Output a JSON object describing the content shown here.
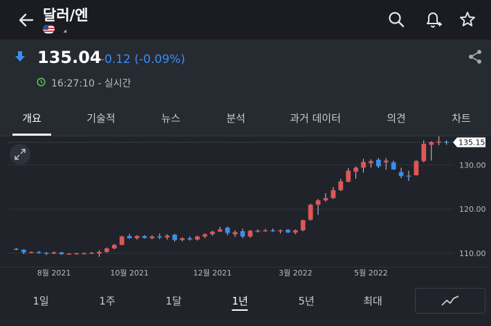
{
  "header": {
    "title": "달러/엔"
  },
  "quote": {
    "price": "135.04",
    "change": "-0.12 (-0.09%)",
    "time": "16:27:10 - 실시간"
  },
  "tabs": [
    "개요",
    "기술적",
    "뉴스",
    "분석",
    "과거 데이터",
    "의견",
    "차트"
  ],
  "ranges": [
    "1일",
    "1주",
    "1달",
    "1년",
    "5년",
    "최대"
  ],
  "colors": {
    "up": "#e05556",
    "down": "#3a8ef2",
    "accent": "#3a8ef2"
  },
  "icons": [
    "back-arrow-icon",
    "us-flag-icon",
    "search-icon",
    "bell-plus-icon",
    "star-icon",
    "down-arrow-icon",
    "share-icon",
    "clock-icon",
    "expand-icon",
    "line-chart-icon"
  ],
  "chart_data": {
    "type": "candlestick",
    "ylim": [
      107,
      136.5
    ],
    "yticks": [
      "110.00",
      "120.00",
      "130.00"
    ],
    "xticks": [
      "8월 2021",
      "10월 2021",
      "12월 2021",
      "3월 2022",
      "5월 2022"
    ],
    "last_price_label": "135.15",
    "candles": [
      [
        111.0,
        111.2,
        110.7,
        110.8
      ],
      [
        110.8,
        110.9,
        109.8,
        110.2
      ],
      [
        110.2,
        110.4,
        110.0,
        110.3
      ],
      [
        110.3,
        110.5,
        109.9,
        110.1
      ],
      [
        110.1,
        110.3,
        109.6,
        109.9
      ],
      [
        109.9,
        110.4,
        109.8,
        110.2
      ],
      [
        110.2,
        110.3,
        109.6,
        109.8
      ],
      [
        109.8,
        110.0,
        109.7,
        109.9
      ],
      [
        109.9,
        110.1,
        109.7,
        110.0
      ],
      [
        110.0,
        110.2,
        109.8,
        110.0
      ],
      [
        110.0,
        110.3,
        109.8,
        110.1
      ],
      [
        109.9,
        110.7,
        109.2,
        110.3
      ],
      [
        110.3,
        111.3,
        110.1,
        111.1
      ],
      [
        111.1,
        112.1,
        110.9,
        111.9
      ],
      [
        111.9,
        114.0,
        111.8,
        113.8
      ],
      [
        113.9,
        114.4,
        113.3,
        113.4
      ],
      [
        113.4,
        114.1,
        113.1,
        113.9
      ],
      [
        113.9,
        114.1,
        113.3,
        113.5
      ],
      [
        113.4,
        114.1,
        113.2,
        113.8
      ],
      [
        113.8,
        114.5,
        113.2,
        113.6
      ],
      [
        113.6,
        114.3,
        113.1,
        114.0
      ],
      [
        114.2,
        114.4,
        112.6,
        113.0
      ],
      [
        113.0,
        113.6,
        112.7,
        113.4
      ],
      [
        113.4,
        113.8,
        112.9,
        113.1
      ],
      [
        113.1,
        114.0,
        112.9,
        113.8
      ],
      [
        113.8,
        114.5,
        113.4,
        114.3
      ],
      [
        114.3,
        115.1,
        114.0,
        114.9
      ],
      [
        114.9,
        116.0,
        114.8,
        115.4
      ],
      [
        115.8,
        116.1,
        114.1,
        114.6
      ],
      [
        114.3,
        115.2,
        113.7,
        114.8
      ],
      [
        115.0,
        115.6,
        113.4,
        113.8
      ],
      [
        113.8,
        115.3,
        113.5,
        115.1
      ],
      [
        115.0,
        115.4,
        114.7,
        115.1
      ],
      [
        115.1,
        115.5,
        114.9,
        115.2
      ],
      [
        115.2,
        115.6,
        114.8,
        115.0
      ],
      [
        115.0,
        115.4,
        114.5,
        115.2
      ],
      [
        115.3,
        115.5,
        114.6,
        114.7
      ],
      [
        114.7,
        115.4,
        114.3,
        115.2
      ],
      [
        115.2,
        117.6,
        115.0,
        117.5
      ],
      [
        117.6,
        121.2,
        117.4,
        121.0
      ],
      [
        121.0,
        122.3,
        118.7,
        122.0
      ],
      [
        122.0,
        123.6,
        121.7,
        122.5
      ],
      [
        122.5,
        125.0,
        122.3,
        124.3
      ],
      [
        124.3,
        126.9,
        124.1,
        126.3
      ],
      [
        126.2,
        129.3,
        126.1,
        128.7
      ],
      [
        128.5,
        129.7,
        126.9,
        129.4
      ],
      [
        129.4,
        131.4,
        128.3,
        130.7
      ],
      [
        130.4,
        131.3,
        129.4,
        130.9
      ],
      [
        131.2,
        131.6,
        129.3,
        129.7
      ],
      [
        130.6,
        131.6,
        128.9,
        131.0
      ],
      [
        130.6,
        131.0,
        128.9,
        129.0
      ],
      [
        128.4,
        129.4,
        127.0,
        127.5
      ],
      [
        127.6,
        128.7,
        126.4,
        127.5
      ],
      [
        127.7,
        131.1,
        127.6,
        130.9
      ],
      [
        130.9,
        135.6,
        130.6,
        134.8
      ],
      [
        134.6,
        135.4,
        131.0,
        135.2
      ],
      [
        135.1,
        136.6,
        134.5,
        135.3
      ],
      [
        135.3,
        135.6,
        134.6,
        135.2
      ]
    ]
  }
}
